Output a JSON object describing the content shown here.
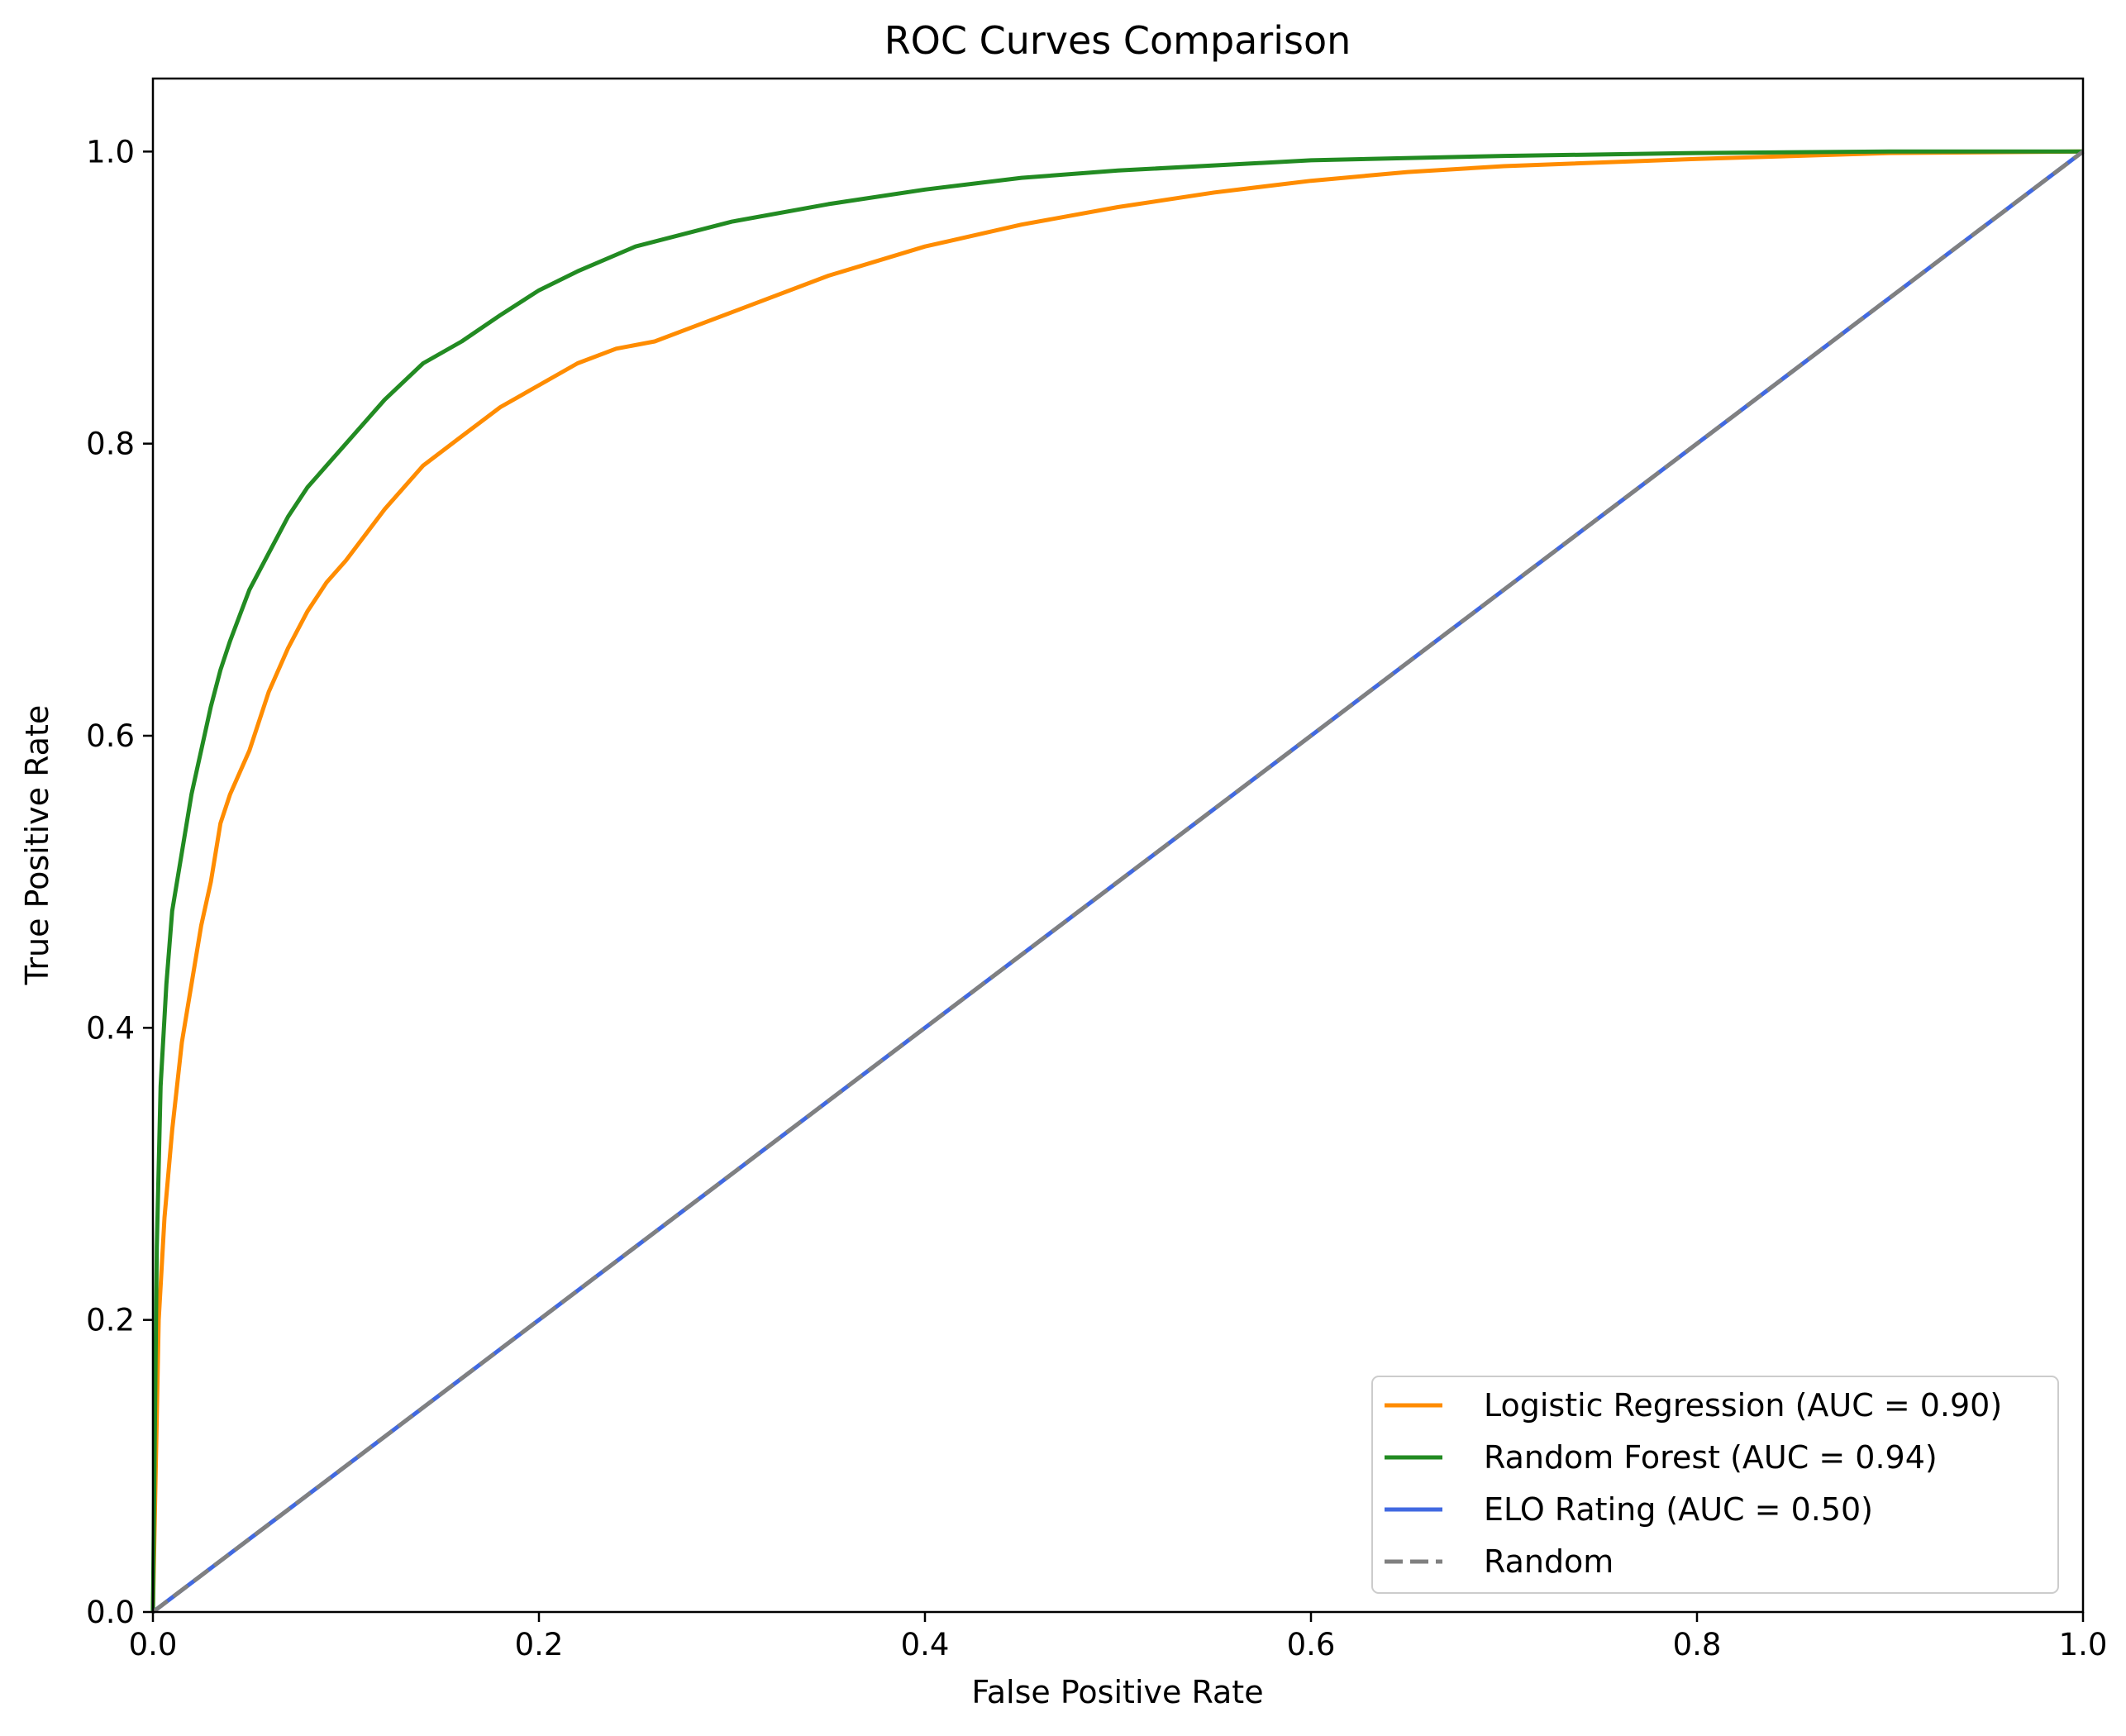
{
  "chart_data": {
    "type": "line",
    "title": "ROC Curves Comparison",
    "xlabel": "False Positive Rate",
    "ylabel": "True Positive Rate",
    "xlim": [
      0.0,
      1.0
    ],
    "ylim": [
      0.0,
      1.05
    ],
    "x_ticks": [
      "0.0",
      "0.2",
      "0.4",
      "0.6",
      "0.8",
      "1.0"
    ],
    "y_ticks": [
      "0.0",
      "0.2",
      "0.4",
      "0.6",
      "0.8",
      "1.0"
    ],
    "grid": false,
    "legend_position": "lower-right",
    "series": [
      {
        "name": "Logistic Regression (AUC = 0.90)",
        "color": "#ff8c00",
        "dash": "solid",
        "x": [
          0.0,
          0.003,
          0.006,
          0.01,
          0.015,
          0.02,
          0.025,
          0.03,
          0.035,
          0.04,
          0.045,
          0.05,
          0.06,
          0.07,
          0.08,
          0.09,
          0.1,
          0.12,
          0.14,
          0.16,
          0.18,
          0.2,
          0.22,
          0.24,
          0.26,
          0.28,
          0.3,
          0.35,
          0.4,
          0.45,
          0.5,
          0.55,
          0.6,
          0.65,
          0.7,
          0.8,
          0.9,
          1.0
        ],
        "y": [
          0.0,
          0.2,
          0.27,
          0.33,
          0.39,
          0.43,
          0.47,
          0.5,
          0.54,
          0.56,
          0.575,
          0.59,
          0.63,
          0.66,
          0.685,
          0.705,
          0.72,
          0.755,
          0.785,
          0.805,
          0.825,
          0.84,
          0.855,
          0.865,
          0.87,
          0.88,
          0.89,
          0.915,
          0.935,
          0.95,
          0.962,
          0.972,
          0.98,
          0.986,
          0.99,
          0.995,
          0.999,
          1.0
        ]
      },
      {
        "name": "Random Forest (AUC = 0.94)",
        "color": "#228b22",
        "dash": "solid",
        "x": [
          0.0,
          0.002,
          0.004,
          0.007,
          0.01,
          0.015,
          0.02,
          0.025,
          0.03,
          0.035,
          0.04,
          0.05,
          0.06,
          0.07,
          0.08,
          0.09,
          0.1,
          0.12,
          0.14,
          0.16,
          0.18,
          0.2,
          0.22,
          0.25,
          0.3,
          0.35,
          0.4,
          0.45,
          0.5,
          0.6,
          0.7,
          0.8,
          0.9,
          1.0
        ],
        "y": [
          0.0,
          0.25,
          0.36,
          0.43,
          0.48,
          0.52,
          0.56,
          0.59,
          0.62,
          0.645,
          0.665,
          0.7,
          0.725,
          0.75,
          0.77,
          0.785,
          0.8,
          0.83,
          0.855,
          0.87,
          0.888,
          0.905,
          0.918,
          0.935,
          0.952,
          0.964,
          0.974,
          0.982,
          0.987,
          0.994,
          0.997,
          0.999,
          1.0,
          1.0
        ]
      },
      {
        "name": "ELO Rating (AUC = 0.50)",
        "color": "#4169e1",
        "dash": "solid",
        "x": [
          0.0,
          1.0
        ],
        "y": [
          0.0,
          1.0
        ]
      },
      {
        "name": "Random",
        "color": "#808080",
        "dash": "dashed",
        "x": [
          0.0,
          1.0
        ],
        "y": [
          0.0,
          1.0
        ]
      }
    ]
  }
}
